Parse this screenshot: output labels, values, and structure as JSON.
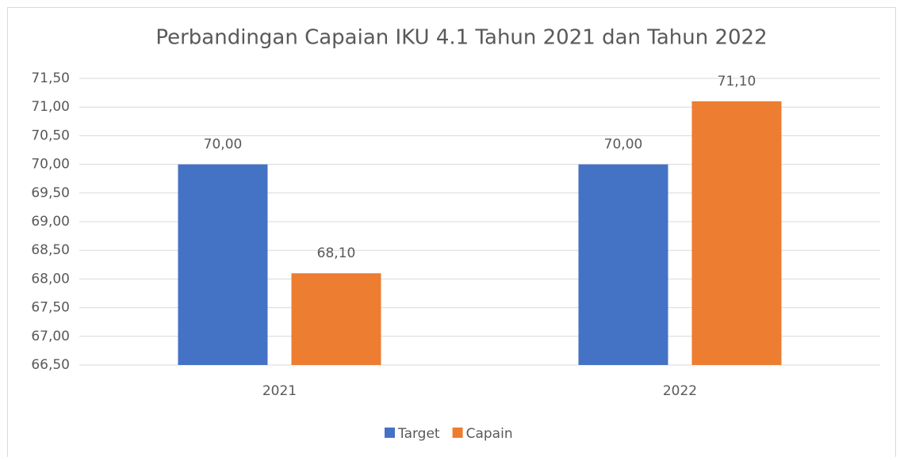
{
  "chart_data": {
    "type": "bar",
    "title": "Perbandingan Capaian IKU 4.1 Tahun 2021 dan Tahun 2022",
    "categories": [
      "2021",
      "2022"
    ],
    "series": [
      {
        "name": "Target",
        "color": "#4472c4",
        "values": [
          70.0,
          70.0
        ],
        "value_labels": [
          "70,00",
          "70,00"
        ]
      },
      {
        "name": "Capain",
        "color": "#ed7d31",
        "values": [
          68.1,
          71.1
        ],
        "value_labels": [
          "68,10",
          "71,10"
        ]
      }
    ],
    "ylim": [
      66.5,
      71.5
    ],
    "yticks": [
      {
        "value": 66.5,
        "label": "66,50"
      },
      {
        "value": 67.0,
        "label": "67,00"
      },
      {
        "value": 67.5,
        "label": "67,50"
      },
      {
        "value": 68.0,
        "label": "68,00"
      },
      {
        "value": 68.5,
        "label": "68,50"
      },
      {
        "value": 69.0,
        "label": "69,00"
      },
      {
        "value": 69.5,
        "label": "69,50"
      },
      {
        "value": 70.0,
        "label": "70,00"
      },
      {
        "value": 70.5,
        "label": "70,50"
      },
      {
        "value": 71.0,
        "label": "71,00"
      },
      {
        "value": 71.5,
        "label": "71,50"
      }
    ],
    "grid": true,
    "legend": "bottom"
  }
}
